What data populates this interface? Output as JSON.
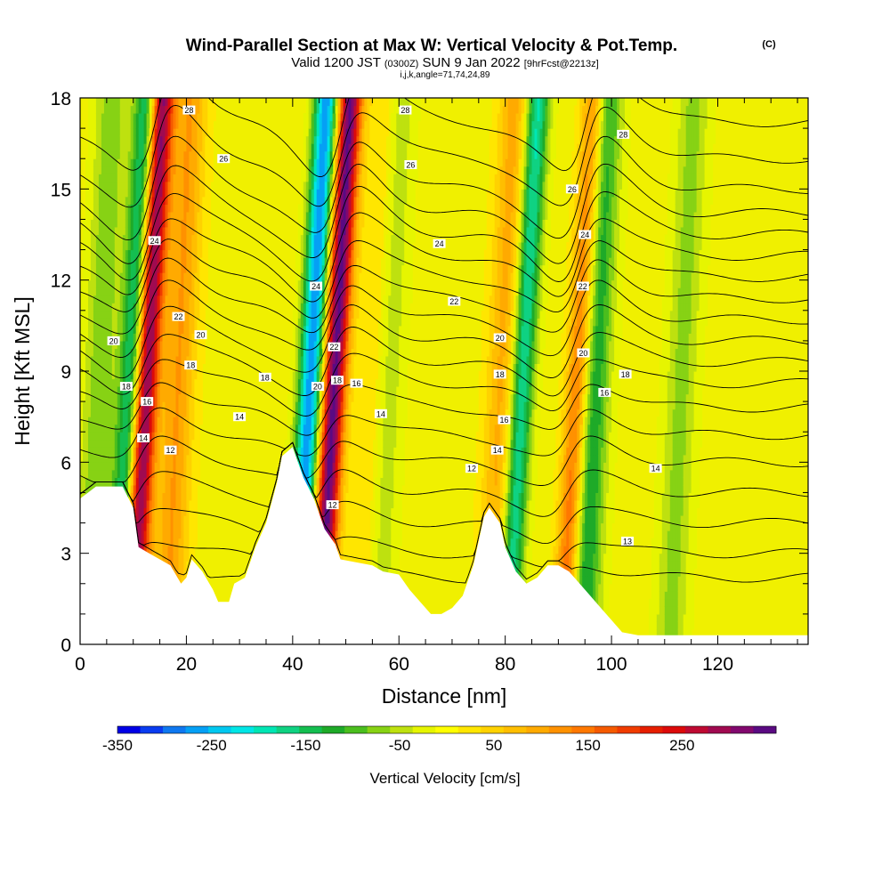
{
  "title": {
    "main": "Wind-Parallel Section at Max W: Vertical Velocity & Pot.Temp.",
    "main_suffix": "(C)",
    "valid_a": "Valid 1200 JST",
    "valid_b": "(0300Z)",
    "valid_c": "SUN 9 Jan 2022",
    "valid_d": "[9hrFcst@2213z]",
    "indices": "i,j,k,angle=71,74,24,89"
  },
  "chart_data": {
    "type": "heatmap",
    "xlabel": "Distance [nm]",
    "ylabel": "Height [Kft MSL]",
    "xlim": [
      0,
      137
    ],
    "ylim": [
      0,
      18
    ],
    "x_ticks": [
      0,
      20,
      40,
      60,
      80,
      100,
      120
    ],
    "y_ticks": [
      0,
      3,
      6,
      9,
      12,
      15,
      18
    ],
    "colorbar": {
      "label": "Vertical Velocity [cm/s]",
      "range": [
        -350,
        350
      ],
      "tick_labels": [
        "-350",
        "-250",
        "-150",
        "-50",
        "50",
        "150",
        "250"
      ],
      "tick_values": [
        -350,
        -250,
        -150,
        -50,
        50,
        150,
        250
      ],
      "colors": [
        "#0000e6",
        "#0a3cf0",
        "#0f78f0",
        "#05a0f5",
        "#00c8f0",
        "#00e6e6",
        "#00e6b4",
        "#0fd282",
        "#14be50",
        "#1eaa28",
        "#4bbe1e",
        "#87d214",
        "#bee10f",
        "#e6f500",
        "#ffff00",
        "#ffe600",
        "#ffd200",
        "#ffbe00",
        "#ffaa00",
        "#ff9100",
        "#ff7800",
        "#f55a00",
        "#f03c00",
        "#e61e00",
        "#dc0a0a",
        "#be0a32",
        "#a00a50",
        "#82086e",
        "#5a0a82"
      ]
    },
    "updrafts": [
      {
        "x": 12.2,
        "w": 330
      },
      {
        "x": 47.6,
        "w": 340
      },
      {
        "x": 93.6,
        "w": 190
      },
      {
        "x": 79.5,
        "w": 100
      },
      {
        "x": 18.3,
        "w": 110
      },
      {
        "x": 55.4,
        "w": 80
      }
    ],
    "downdrafts": [
      {
        "x": 9.4,
        "w": -190
      },
      {
        "x": 43.2,
        "w": -280
      },
      {
        "x": 82.9,
        "w": -200
      },
      {
        "x": 96.3,
        "w": -150
      },
      {
        "x": 57.2,
        "w": -90
      },
      {
        "x": 3.5,
        "w": -80
      },
      {
        "x": 113.0,
        "w": -70
      }
    ],
    "terrain_top_kft": [
      [
        0,
        4.8
      ],
      [
        3,
        5.2
      ],
      [
        8,
        5.2
      ],
      [
        10,
        4.5
      ],
      [
        11,
        3.2
      ],
      [
        13,
        3.0
      ],
      [
        15,
        2.8
      ],
      [
        17,
        2.6
      ],
      [
        19,
        2.0
      ],
      [
        20,
        2.2
      ],
      [
        21,
        2.8
      ],
      [
        23,
        2.4
      ],
      [
        25,
        1.8
      ],
      [
        26,
        1.4
      ],
      [
        28,
        1.4
      ],
      [
        29,
        2.0
      ],
      [
        31,
        2.2
      ],
      [
        33,
        3.2
      ],
      [
        35,
        4.0
      ],
      [
        37,
        5.3
      ],
      [
        38,
        6.2
      ],
      [
        40,
        6.5
      ],
      [
        42,
        5.5
      ],
      [
        44,
        4.8
      ],
      [
        46,
        3.8
      ],
      [
        48,
        3.3
      ],
      [
        49,
        2.8
      ],
      [
        55,
        2.6
      ],
      [
        57,
        2.4
      ],
      [
        60,
        2.3
      ],
      [
        62,
        1.8
      ],
      [
        64,
        1.4
      ],
      [
        66,
        1.0
      ],
      [
        68,
        1.0
      ],
      [
        70,
        1.2
      ],
      [
        72,
        1.6
      ],
      [
        74,
        2.6
      ],
      [
        76,
        4.2
      ],
      [
        77,
        4.5
      ],
      [
        79,
        4.0
      ],
      [
        80,
        3.2
      ],
      [
        82,
        2.4
      ],
      [
        84,
        2.0
      ],
      [
        86,
        2.2
      ],
      [
        88,
        2.6
      ],
      [
        90,
        2.6
      ],
      [
        92,
        2.4
      ],
      [
        94,
        2.0
      ],
      [
        96,
        1.6
      ],
      [
        98,
        1.2
      ],
      [
        100,
        0.8
      ],
      [
        102,
        0.4
      ],
      [
        105,
        0.3
      ],
      [
        137,
        0.3
      ]
    ],
    "isentropes": {
      "units": "C",
      "levels": [
        10,
        11,
        12,
        13,
        14,
        15,
        16,
        17,
        18,
        19,
        20,
        21,
        22,
        23,
        24,
        25,
        26,
        27,
        28
      ],
      "base_height_kft": [
        2.2,
        3.0,
        4.0,
        5.0,
        6.0,
        6.9,
        7.8,
        8.6,
        9.3,
        10.0,
        10.7,
        11.4,
        12.1,
        12.8,
        13.5,
        14.2,
        15.0,
        16.0,
        17.2
      ],
      "wave_phase_x": [
        11.5,
        46.5,
        92.5
      ],
      "labels": [
        {
          "text": "28",
          "x": 20.5,
          "y": 17.6
        },
        {
          "text": "26",
          "x": 27.0,
          "y": 16.0
        },
        {
          "text": "24",
          "x": 14.0,
          "y": 13.3
        },
        {
          "text": "22",
          "x": 18.5,
          "y": 10.8
        },
        {
          "text": "20",
          "x": 22.7,
          "y": 10.2
        },
        {
          "text": "20",
          "x": 6.3,
          "y": 10.0
        },
        {
          "text": "18",
          "x": 20.8,
          "y": 9.2
        },
        {
          "text": "18",
          "x": 8.7,
          "y": 8.5
        },
        {
          "text": "16",
          "x": 12.6,
          "y": 8.0
        },
        {
          "text": "14",
          "x": 11.9,
          "y": 6.8
        },
        {
          "text": "12",
          "x": 17.0,
          "y": 6.4
        },
        {
          "text": "18",
          "x": 34.8,
          "y": 8.8
        },
        {
          "text": "14",
          "x": 30.0,
          "y": 7.5
        },
        {
          "text": "24",
          "x": 44.4,
          "y": 11.8
        },
        {
          "text": "22",
          "x": 47.8,
          "y": 9.8
        },
        {
          "text": "20",
          "x": 44.7,
          "y": 8.5
        },
        {
          "text": "18",
          "x": 48.4,
          "y": 8.7
        },
        {
          "text": "16",
          "x": 52.0,
          "y": 8.6
        },
        {
          "text": "14",
          "x": 56.6,
          "y": 7.6
        },
        {
          "text": "12",
          "x": 47.5,
          "y": 4.6
        },
        {
          "text": "28",
          "x": 61.2,
          "y": 17.6
        },
        {
          "text": "26",
          "x": 62.2,
          "y": 15.8
        },
        {
          "text": "24",
          "x": 67.6,
          "y": 13.2
        },
        {
          "text": "22",
          "x": 70.4,
          "y": 11.3
        },
        {
          "text": "20",
          "x": 79.0,
          "y": 10.1
        },
        {
          "text": "18",
          "x": 79.0,
          "y": 8.9
        },
        {
          "text": "16",
          "x": 79.8,
          "y": 7.4
        },
        {
          "text": "14",
          "x": 78.5,
          "y": 6.4
        },
        {
          "text": "12",
          "x": 73.7,
          "y": 5.8
        },
        {
          "text": "28",
          "x": 102.2,
          "y": 16.8
        },
        {
          "text": "26",
          "x": 92.6,
          "y": 15.0
        },
        {
          "text": "24",
          "x": 95.0,
          "y": 13.5
        },
        {
          "text": "22",
          "x": 94.6,
          "y": 11.8
        },
        {
          "text": "20",
          "x": 94.7,
          "y": 9.6
        },
        {
          "text": "18",
          "x": 102.6,
          "y": 8.9
        },
        {
          "text": "16",
          "x": 98.7,
          "y": 8.3
        },
        {
          "text": "14",
          "x": 108.3,
          "y": 5.8
        },
        {
          "text": "13",
          "x": 103.0,
          "y": 3.4
        }
      ]
    }
  }
}
